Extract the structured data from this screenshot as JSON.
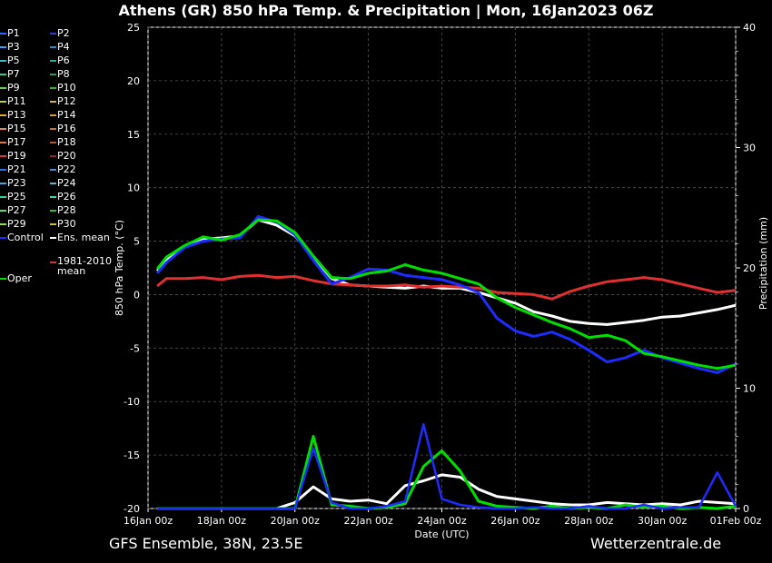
{
  "title": "Athens  (GR)  850 hPa Temp. & Precipitation | Mon, 16Jan2023 06Z",
  "footer": {
    "left": "GFS Ensemble, 38N, 23.5E",
    "right": "Wetterzentrale.de"
  },
  "legend": [
    {
      "label": "P1",
      "color": "#1e6bff"
    },
    {
      "label": "P2",
      "color": "#2c3cd8"
    },
    {
      "label": "P3",
      "color": "#3fa0ff"
    },
    {
      "label": "P4",
      "color": "#1e8fd0"
    },
    {
      "label": "P5",
      "color": "#30c0c0"
    },
    {
      "label": "P6",
      "color": "#20b0a0"
    },
    {
      "label": "P7",
      "color": "#2bcf8f"
    },
    {
      "label": "P8",
      "color": "#1ea060"
    },
    {
      "label": "P9",
      "color": "#5fd04f"
    },
    {
      "label": "P10",
      "color": "#20c020"
    },
    {
      "label": "P11",
      "color": "#c8d040"
    },
    {
      "label": "P12",
      "color": "#d4b830"
    },
    {
      "label": "P13",
      "color": "#e0b020"
    },
    {
      "label": "P14",
      "color": "#e09a30"
    },
    {
      "label": "P15",
      "color": "#e08860"
    },
    {
      "label": "P16",
      "color": "#d07020"
    },
    {
      "label": "P17",
      "color": "#e07840"
    },
    {
      "label": "P18",
      "color": "#c05030"
    },
    {
      "label": "P19",
      "color": "#d04040"
    },
    {
      "label": "P20",
      "color": "#a02020"
    },
    {
      "label": "P21",
      "color": "#3070e0"
    },
    {
      "label": "P22",
      "color": "#4090e0"
    },
    {
      "label": "P23",
      "color": "#40a8e0"
    },
    {
      "label": "P24",
      "color": "#50b8d0"
    },
    {
      "label": "P25",
      "color": "#30d0a0"
    },
    {
      "label": "P26",
      "color": "#30e0b0"
    },
    {
      "label": "P27",
      "color": "#60e070"
    },
    {
      "label": "P28",
      "color": "#30c050"
    },
    {
      "label": "P29",
      "color": "#90e040"
    },
    {
      "label": "P30",
      "color": "#e0c020"
    },
    {
      "label": "Control",
      "color": "#1e2cff"
    },
    {
      "label": "Ens. mean",
      "color": "#ffffff"
    },
    {
      "label": "1981-2010 mean",
      "color": "#e03030"
    },
    {
      "label": "Oper",
      "color": "#00e000"
    }
  ],
  "chart_data": {
    "type": "line",
    "xlabel": "Date (UTC)",
    "ylabel_left": "850 hPa Temp. (°C)",
    "ylabel_right": "Precipitation (mm)",
    "ylim_left": [
      -20,
      25
    ],
    "ylim_right": [
      0,
      40
    ],
    "yticks_left": [
      25,
      20,
      15,
      10,
      5,
      0,
      -5,
      -10,
      -15,
      -20
    ],
    "yticks_right": [
      40,
      30,
      20,
      10,
      0
    ],
    "xticks": [
      "16Jan 00z",
      "18Jan 00z",
      "20Jan 00z",
      "22Jan 00z",
      "24Jan 00z",
      "26Jan 00z",
      "28Jan 00z",
      "30Jan 00z",
      "01Feb 00z"
    ],
    "x_days": [
      0.25,
      0.5,
      1,
      1.5,
      2,
      2.5,
      3,
      3.5,
      4,
      4.5,
      5,
      5.5,
      6,
      6.5,
      7,
      7.5,
      8,
      8.5,
      9,
      9.5,
      10,
      10.5,
      11,
      11.5,
      12,
      12.5,
      13,
      13.5,
      14,
      14.5,
      15,
      15.5,
      16
    ],
    "grid": true,
    "series": [
      {
        "name": "Ens. mean",
        "axis": "left",
        "color": "#ffffff",
        "values": [
          2.2,
          3.2,
          4.5,
          5.2,
          5.3,
          5.5,
          7.0,
          6.5,
          5.5,
          3.5,
          1.5,
          0.9,
          0.8,
          0.7,
          0.6,
          0.8,
          0.6,
          0.6,
          0.2,
          -0.3,
          -0.8,
          -1.6,
          -2.0,
          -2.5,
          -2.7,
          -2.8,
          -2.6,
          -2.4,
          -2.1,
          -2.0,
          -1.7,
          -1.4,
          -1.0
        ]
      },
      {
        "name": "1981-2010 mean",
        "axis": "left",
        "color": "#e03030",
        "values": [
          0.8,
          1.5,
          1.5,
          1.6,
          1.4,
          1.7,
          1.8,
          1.6,
          1.7,
          1.3,
          1.0,
          0.9,
          0.8,
          0.8,
          0.9,
          0.7,
          0.8,
          0.7,
          0.6,
          0.2,
          0.1,
          0.0,
          -0.4,
          0.3,
          0.8,
          1.2,
          1.4,
          1.6,
          1.4,
          1.0,
          0.6,
          0.2,
          0.4
        ]
      },
      {
        "name": "Control",
        "axis": "left",
        "color": "#1e2cff",
        "values": [
          2.0,
          3.0,
          4.4,
          5.0,
          5.2,
          5.3,
          7.3,
          6.8,
          5.6,
          3.2,
          1.0,
          1.6,
          2.4,
          2.3,
          1.8,
          1.6,
          1.4,
          0.9,
          0.2,
          -2.2,
          -3.4,
          -3.9,
          -3.5,
          -4.2,
          -5.2,
          -6.3,
          -5.9,
          -5.2,
          -5.9,
          -6.4,
          -6.9,
          -7.3,
          -6.5
        ]
      },
      {
        "name": "Oper",
        "axis": "left",
        "color": "#00e000",
        "values": [
          2.4,
          3.5,
          4.6,
          5.4,
          5.1,
          5.6,
          7.0,
          6.9,
          5.8,
          3.6,
          1.6,
          1.5,
          2.0,
          2.2,
          2.8,
          2.3,
          2.0,
          1.5,
          1.0,
          -0.3,
          -1.2,
          -1.9,
          -2.6,
          -3.2,
          -4.0,
          -3.8,
          -4.3,
          -5.5,
          -5.8,
          -6.2,
          -6.6,
          -6.9,
          -6.6
        ]
      },
      {
        "name": "Ens. mean precip",
        "axis": "right",
        "color": "#ffffff",
        "values": [
          0,
          0,
          0,
          0,
          0,
          0,
          0,
          0,
          0.5,
          1.8,
          0.8,
          0.6,
          0.7,
          0.4,
          1.9,
          2.3,
          2.8,
          2.6,
          1.6,
          1.0,
          0.8,
          0.6,
          0.4,
          0.3,
          0.3,
          0.5,
          0.4,
          0.3,
          0.4,
          0.3,
          0.6,
          0.5,
          0.4
        ]
      },
      {
        "name": "Oper precip",
        "axis": "right",
        "color": "#00e000",
        "values": [
          0,
          0,
          0,
          0,
          0,
          0,
          0,
          0,
          0,
          6.0,
          0.3,
          0.2,
          0.0,
          0.1,
          0.4,
          3.5,
          4.8,
          3.1,
          0.6,
          0.2,
          0.1,
          0.0,
          0.2,
          0.0,
          0.1,
          0.0,
          0.3,
          0.1,
          0.2,
          0.0,
          0.1,
          0.0,
          0.2
        ]
      },
      {
        "name": "Control precip",
        "axis": "right",
        "color": "#1e2cff",
        "values": [
          0,
          0,
          0,
          0,
          0,
          0,
          0,
          0,
          0,
          5.0,
          0.5,
          0.0,
          0.0,
          0.2,
          0.6,
          7.0,
          0.8,
          0.3,
          0.1,
          0.0,
          0.0,
          0.1,
          0.0,
          0.0,
          0.2,
          0.0,
          0.0,
          0.3,
          0.0,
          0.1,
          0.1,
          3.0,
          0.2
        ]
      }
    ]
  }
}
